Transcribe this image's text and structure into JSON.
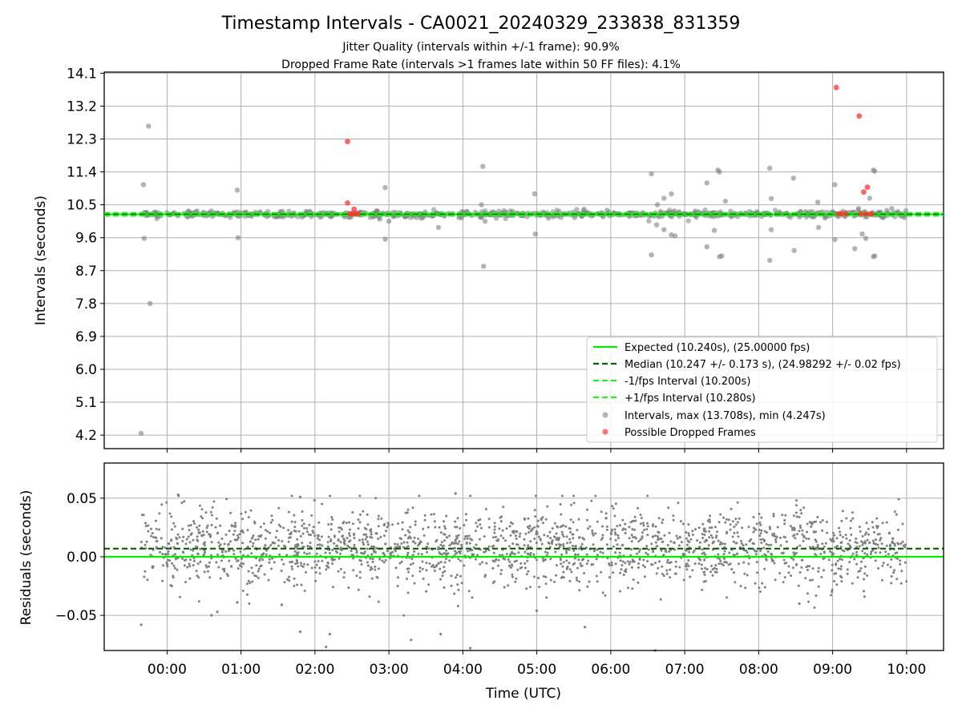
{
  "title": "Timestamp Intervals - CA0021_20240329_233838_831359",
  "subtitle_1": "Jitter Quality (intervals within +/-1 frame): 90.9%",
  "subtitle_2": "Dropped Frame Rate (intervals >1 frames late within 50 FF files): 4.1%",
  "colors": {
    "expected": "#00ee00",
    "median": "#006400",
    "interval_lines": "#22ee22",
    "points": "#808080",
    "dropped": "#ff3333",
    "grid": "#b0b0b0"
  },
  "chart_data": [
    {
      "type": "scatter",
      "ylabel": "Intervals (seconds)",
      "x_ticks": [
        "00:00",
        "01:00",
        "02:00",
        "03:00",
        "04:00",
        "05:00",
        "06:00",
        "07:00",
        "08:00",
        "09:00",
        "10:00"
      ],
      "y_ticks": [
        "4.2",
        "5.1",
        "6.0",
        "6.9",
        "7.8",
        "8.7",
        "9.6",
        "10.5",
        "11.4",
        "12.3",
        "13.2",
        "14.1"
      ],
      "xlim_hours": [
        -0.85,
        10.5
      ],
      "ylim": [
        3.83,
        14.13
      ],
      "grid": true,
      "legend_position": "lower-right",
      "lines": [
        {
          "name": "Expected (10.240s), (25.00000 fps)",
          "y": 10.24,
          "style": "solid",
          "color": "#00ee00"
        },
        {
          "name": "Median (10.247 +/- 0.173 s), (24.98292 +/- 0.02 fps)",
          "y": 10.247,
          "style": "dashed",
          "color": "#006400"
        },
        {
          "name": "-1/fps Interval (10.200s)",
          "y": 10.2,
          "style": "dashed",
          "color": "#22ee22"
        },
        {
          "name": "+1/fps Interval (10.280s)",
          "y": 10.28,
          "style": "dashed",
          "color": "#22ee22"
        }
      ],
      "series_labels": {
        "intervals": "Intervals, max (13.708s), min (4.247s)",
        "dropped": "Possible Dropped Frames"
      },
      "intervals_outliers": [
        [
          -0.35,
          4.247
        ],
        [
          -0.32,
          11.05
        ],
        [
          -0.31,
          9.58
        ],
        [
          -0.25,
          12.65
        ],
        [
          -0.23,
          7.8
        ],
        [
          0.95,
          10.9
        ],
        [
          0.96,
          9.6
        ],
        [
          2.95,
          10.97
        ],
        [
          2.95,
          9.56
        ],
        [
          4.27,
          11.55
        ],
        [
          4.28,
          8.82
        ],
        [
          3.67,
          9.88
        ],
        [
          4.25,
          10.5
        ],
        [
          4.3,
          10.05
        ],
        [
          4.97,
          10.8
        ],
        [
          4.98,
          9.7
        ],
        [
          6.55,
          11.35
        ],
        [
          6.55,
          9.13
        ],
        [
          6.63,
          10.5
        ],
        [
          6.62,
          9.95
        ],
        [
          6.72,
          10.68
        ],
        [
          6.72,
          9.82
        ],
        [
          6.82,
          10.8
        ],
        [
          6.82,
          9.68
        ],
        [
          6.87,
          9.65
        ],
        [
          7.3,
          11.1
        ],
        [
          7.3,
          9.35
        ],
        [
          7.4,
          9.8
        ],
        [
          7.45,
          11.45
        ],
        [
          7.47,
          11.4
        ],
        [
          7.47,
          9.08
        ],
        [
          7.5,
          9.1
        ],
        [
          7.55,
          10.6
        ],
        [
          8.15,
          11.5
        ],
        [
          8.17,
          10.67
        ],
        [
          8.17,
          9.82
        ],
        [
          8.15,
          8.98
        ],
        [
          8.47,
          11.23
        ],
        [
          8.48,
          9.25
        ],
        [
          8.8,
          10.57
        ],
        [
          8.81,
          9.88
        ],
        [
          9.03,
          11.05
        ],
        [
          9.03,
          9.55
        ],
        [
          9.3,
          9.3
        ],
        [
          9.35,
          10.4
        ],
        [
          9.4,
          9.7
        ],
        [
          9.45,
          9.58
        ],
        [
          9.5,
          10.68
        ],
        [
          9.55,
          11.45
        ],
        [
          9.57,
          11.42
        ],
        [
          9.55,
          9.08
        ],
        [
          9.57,
          9.1
        ],
        [
          9.65,
          10.3
        ],
        [
          9.8,
          10.4
        ],
        [
          3.0,
          10.05
        ],
        [
          5.95,
          10.35
        ]
      ],
      "dropped_points": [
        [
          2.44,
          12.23
        ],
        [
          2.44,
          10.55
        ],
        [
          2.47,
          10.25
        ],
        [
          2.5,
          10.25
        ],
        [
          2.53,
          10.38
        ],
        [
          2.55,
          10.25
        ],
        [
          2.58,
          10.25
        ],
        [
          9.05,
          13.708
        ],
        [
          9.08,
          10.25
        ],
        [
          9.12,
          10.25
        ],
        [
          9.18,
          10.25
        ],
        [
          9.36,
          12.93
        ],
        [
          9.38,
          10.25
        ],
        [
          9.42,
          10.85
        ],
        [
          9.45,
          10.25
        ],
        [
          9.47,
          10.98
        ],
        [
          9.5,
          10.25
        ],
        [
          9.53,
          10.25
        ]
      ]
    },
    {
      "type": "scatter",
      "xlabel": "Time (UTC)",
      "ylabel": "Residuals (seconds)",
      "y_ticks": [
        "−0.05",
        "0.00",
        "0.05"
      ],
      "y_tick_values": [
        -0.05,
        0.0,
        0.05
      ],
      "ylim": [
        -0.08,
        0.08
      ],
      "grid": true,
      "lines": [
        {
          "y": 0.0,
          "style": "solid",
          "color": "#00ee00"
        },
        {
          "y": 0.007,
          "style": "dashed",
          "color": "#006400"
        }
      ],
      "residual_range_hours": [
        -0.35,
        10.0
      ],
      "residual_mean": 0.008,
      "residual_outliers": [
        [
          -0.35,
          -0.058
        ],
        [
          0.6,
          -0.05
        ],
        [
          0.68,
          -0.047
        ],
        [
          0.95,
          -0.039
        ],
        [
          1.55,
          -0.041
        ],
        [
          1.8,
          -0.064
        ],
        [
          2.2,
          -0.066
        ],
        [
          2.15,
          -0.077
        ],
        [
          3.3,
          -0.071
        ],
        [
          3.7,
          -0.066
        ],
        [
          4.1,
          -0.078
        ],
        [
          5.0,
          -0.046
        ],
        [
          5.65,
          -0.06
        ],
        [
          6.6,
          -0.08
        ],
        [
          8.55,
          -0.04
        ],
        [
          0.15,
          0.053
        ],
        [
          3.9,
          0.054
        ],
        [
          1.8,
          0.051
        ]
      ]
    }
  ]
}
